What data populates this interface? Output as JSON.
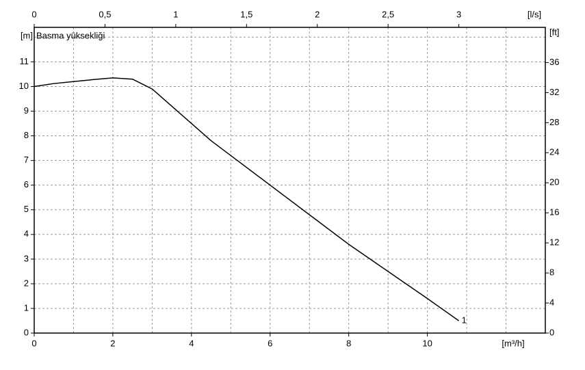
{
  "chart_data": {
    "type": "line",
    "title": "Basma yüksekliği",
    "xlabel": "[m³/h]",
    "x2label": "[l/s]",
    "ylabel": "[m]",
    "y2label": "[ft]",
    "xlim": [
      0,
      13
    ],
    "xticks": [
      0,
      2,
      4,
      6,
      8,
      10
    ],
    "x2lim": [
      0,
      3.611
    ],
    "x2ticks": [
      0,
      {
        "value": 0.5,
        "label": "0,5"
      },
      1,
      {
        "value": 1.5,
        "label": "1,5"
      },
      2,
      {
        "value": 2.5,
        "label": "2,5"
      },
      3
    ],
    "ylim": [
      0,
      12.4
    ],
    "yticks": [
      0,
      1,
      2,
      3,
      4,
      5,
      6,
      7,
      8,
      9,
      10,
      11
    ],
    "y2lim": [
      0,
      40.68
    ],
    "y2ticks": [
      0,
      4,
      8,
      12,
      16,
      20,
      24,
      28,
      32,
      36
    ],
    "grid": true,
    "x": [
      0,
      0.5,
      1,
      1.5,
      2,
      2.5,
      3,
      3.5,
      4,
      4.5,
      5,
      6,
      7,
      8,
      9,
      10,
      10.8
    ],
    "series": [
      {
        "name": "1",
        "color": "#000000",
        "values": [
          10.0,
          10.12,
          10.2,
          10.28,
          10.35,
          10.3,
          9.9,
          9.2,
          8.5,
          7.8,
          7.2,
          6.0,
          4.8,
          3.6,
          2.5,
          1.4,
          0.5
        ]
      }
    ]
  }
}
